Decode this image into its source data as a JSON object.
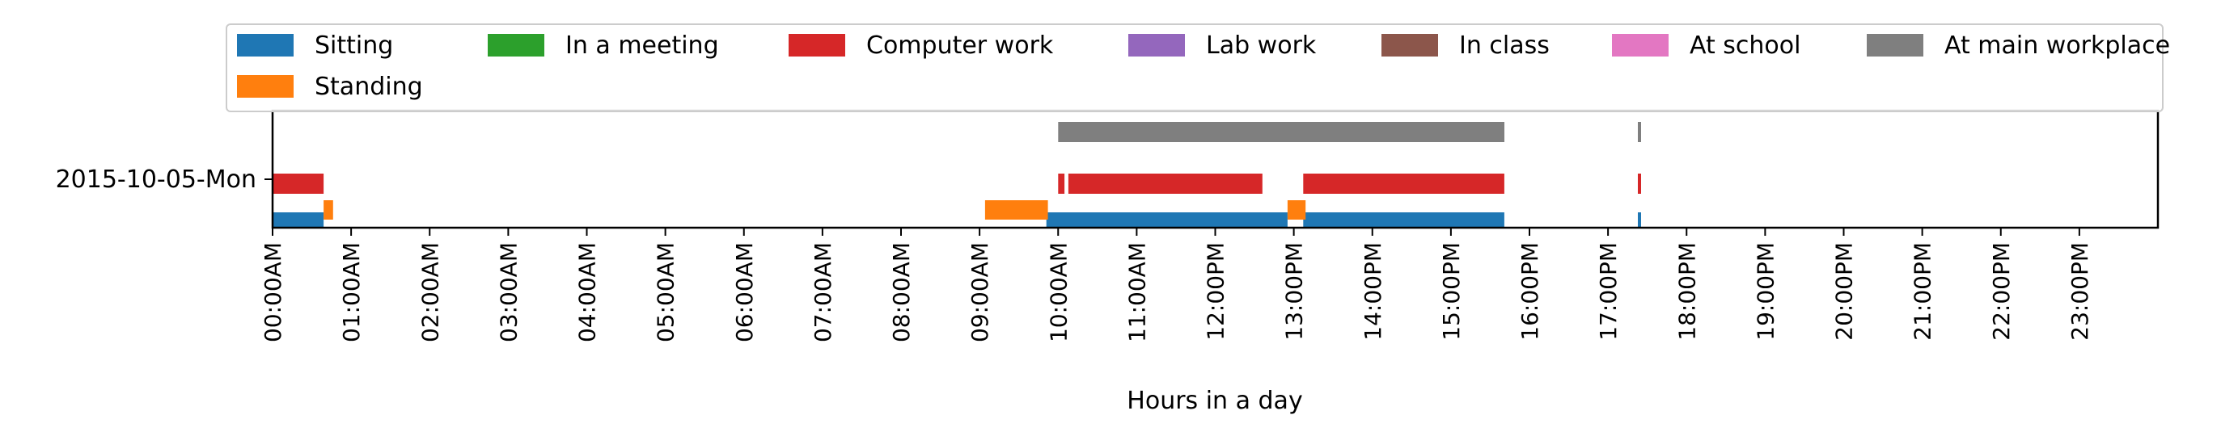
{
  "chart_data": {
    "type": "timeline",
    "xlabel": "Hours in a day",
    "xlim": [
      0,
      24
    ],
    "x_ticks": [
      {
        "h": 0,
        "label": "00:00AM"
      },
      {
        "h": 1,
        "label": "01:00AM"
      },
      {
        "h": 2,
        "label": "02:00AM"
      },
      {
        "h": 3,
        "label": "03:00AM"
      },
      {
        "h": 4,
        "label": "04:00AM"
      },
      {
        "h": 5,
        "label": "05:00AM"
      },
      {
        "h": 6,
        "label": "06:00AM"
      },
      {
        "h": 7,
        "label": "07:00AM"
      },
      {
        "h": 8,
        "label": "08:00AM"
      },
      {
        "h": 9,
        "label": "09:00AM"
      },
      {
        "h": 10,
        "label": "10:00AM"
      },
      {
        "h": 11,
        "label": "11:00AM"
      },
      {
        "h": 12,
        "label": "12:00PM"
      },
      {
        "h": 13,
        "label": "13:00PM"
      },
      {
        "h": 14,
        "label": "14:00PM"
      },
      {
        "h": 15,
        "label": "15:00PM"
      },
      {
        "h": 16,
        "label": "16:00PM"
      },
      {
        "h": 17,
        "label": "17:00PM"
      },
      {
        "h": 18,
        "label": "18:00PM"
      },
      {
        "h": 19,
        "label": "19:00PM"
      },
      {
        "h": 20,
        "label": "20:00PM"
      },
      {
        "h": 21,
        "label": "21:00PM"
      },
      {
        "h": 22,
        "label": "22:00PM"
      },
      {
        "h": 23,
        "label": "23:00PM"
      }
    ],
    "y_categories": [
      "2015-10-05-Mon"
    ],
    "legend": {
      "placement": "top",
      "columns": 7,
      "entries": [
        {
          "name": "Sitting",
          "color": "#1f77b4"
        },
        {
          "name": "In a meeting",
          "color": "#2ca02c"
        },
        {
          "name": "Computer work",
          "color": "#d62728"
        },
        {
          "name": "Lab work",
          "color": "#9467bd"
        },
        {
          "name": "In class",
          "color": "#8c564b"
        },
        {
          "name": "At school",
          "color": "#e377c2"
        },
        {
          "name": "At main workplace",
          "color": "#7f7f7f"
        },
        {
          "name": "Standing",
          "color": "#ff7f0e"
        }
      ]
    },
    "series": [
      {
        "name": "Sitting",
        "color": "#1f77b4",
        "lane": 0,
        "intervals": [
          [
            0.0,
            0.65
          ],
          [
            9.85,
            12.92
          ],
          [
            13.12,
            15.68
          ],
          [
            17.38,
            17.42
          ]
        ]
      },
      {
        "name": "Standing",
        "color": "#ff7f0e",
        "lane": 1,
        "intervals": [
          [
            0.65,
            0.77
          ],
          [
            9.07,
            9.87
          ],
          [
            12.92,
            13.15
          ]
        ]
      },
      {
        "name": "Computer work",
        "color": "#d62728",
        "lane": 2,
        "intervals": [
          [
            0.0,
            0.65
          ],
          [
            10.0,
            10.08
          ],
          [
            10.13,
            12.6
          ],
          [
            13.12,
            15.68
          ],
          [
            17.38,
            17.42
          ]
        ]
      },
      {
        "name": "At main workplace",
        "color": "#7f7f7f",
        "lane": 3,
        "intervals": [
          [
            10.0,
            15.68
          ],
          [
            17.38,
            17.42
          ]
        ]
      },
      {
        "name": "In a meeting",
        "color": "#2ca02c",
        "lane": 4,
        "intervals": []
      },
      {
        "name": "Lab work",
        "color": "#9467bd",
        "lane": 5,
        "intervals": []
      },
      {
        "name": "In class",
        "color": "#8c564b",
        "lane": 6,
        "intervals": []
      },
      {
        "name": "At school",
        "color": "#e377c2",
        "lane": 7,
        "intervals": []
      }
    ],
    "grid": false
  }
}
